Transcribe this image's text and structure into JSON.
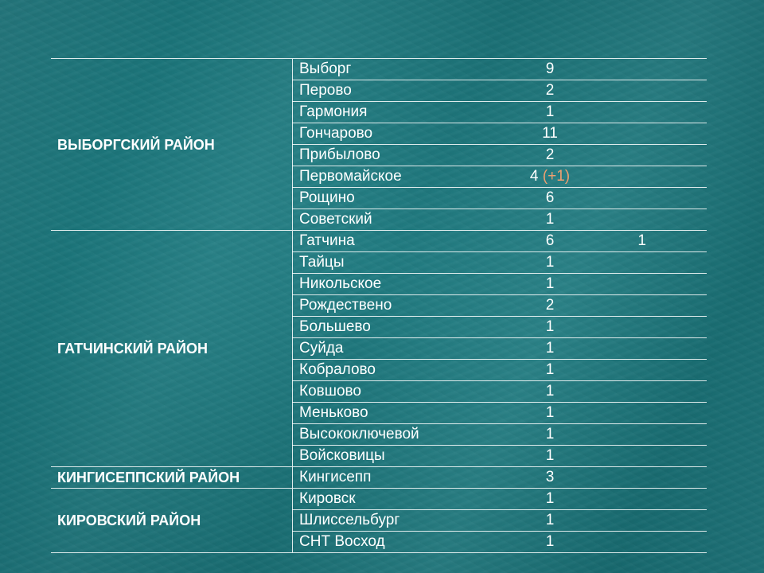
{
  "districts": [
    {
      "name": "ВЫБОРГСКИЙ РАЙОН",
      "rows": [
        {
          "town": "Выборг",
          "count": "9",
          "increment": "",
          "extra": ""
        },
        {
          "town": "Перово",
          "count": "2",
          "increment": "",
          "extra": ""
        },
        {
          "town": "Гармония",
          "count": "1",
          "increment": "",
          "extra": ""
        },
        {
          "town": "Гончарово",
          "count": "11",
          "increment": "",
          "extra": ""
        },
        {
          "town": "Прибылово",
          "count": "2",
          "increment": "",
          "extra": ""
        },
        {
          "town": "Первомайское",
          "count": "4",
          "increment": "(+1)",
          "extra": ""
        },
        {
          "town": "Рощино",
          "count": "6",
          "increment": "",
          "extra": ""
        },
        {
          "town": "Советский",
          "count": "1",
          "increment": "",
          "extra": ""
        }
      ]
    },
    {
      "name": "ГАТЧИНСКИЙ РАЙОН",
      "rows": [
        {
          "town": "Гатчина",
          "count": "6",
          "increment": "",
          "extra": "1"
        },
        {
          "town": "Тайцы",
          "count": "1",
          "increment": "",
          "extra": ""
        },
        {
          "town": "Никольское",
          "count": "1",
          "increment": "",
          "extra": ""
        },
        {
          "town": "Рождествено",
          "count": "2",
          "increment": "",
          "extra": ""
        },
        {
          "town": "Большево",
          "count": "1",
          "increment": "",
          "extra": ""
        },
        {
          "town": "Суйда",
          "count": "1",
          "increment": "",
          "extra": ""
        },
        {
          "town": "Кобралово",
          "count": "1",
          "increment": "",
          "extra": ""
        },
        {
          "town": "Ковшово",
          "count": "1",
          "increment": "",
          "extra": ""
        },
        {
          "town": "Меньково",
          "count": "1",
          "increment": "",
          "extra": ""
        },
        {
          "town": "Высокоключевой",
          "count": "1",
          "increment": "",
          "extra": ""
        },
        {
          "town": "Войсковицы",
          "count": "1",
          "increment": "",
          "extra": ""
        }
      ]
    },
    {
      "name": "КИНГИСЕППСКИЙ РАЙОН",
      "rows": [
        {
          "town": "Кингисепп",
          "count": "3",
          "increment": "",
          "extra": ""
        }
      ]
    },
    {
      "name": "КИРОВСКИЙ РАЙОН",
      "rows": [
        {
          "town": "Кировск",
          "count": "1",
          "increment": "",
          "extra": ""
        },
        {
          "town": "Шлиссельбург",
          "count": "1",
          "increment": "",
          "extra": ""
        },
        {
          "town": "СНТ Восход",
          "count": "1",
          "increment": "",
          "extra": ""
        }
      ]
    }
  ],
  "colors": {
    "background": "#1e7a80",
    "text": "#ffffff",
    "increment": "#f0a070"
  }
}
